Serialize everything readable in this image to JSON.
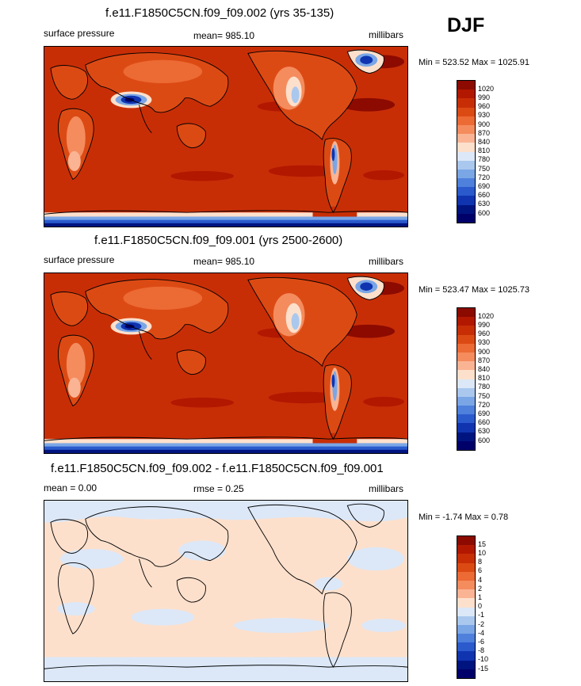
{
  "season": "DJF",
  "panels": [
    {
      "title": "f.e11.F1850C5CN.f09_f09.002 (yrs 35-135)",
      "left_label": "surface pressure",
      "center_label": "mean= 985.10",
      "right_label": "millibars",
      "minmax": "Min = 523.52 Max = 1025.91",
      "levels": [
        "1020",
        "990",
        "960",
        "930",
        "900",
        "870",
        "840",
        "810",
        "780",
        "750",
        "720",
        "690",
        "660",
        "630",
        "600"
      ],
      "colors": [
        "#8c0a00",
        "#b21800",
        "#c82e06",
        "#dc4a14",
        "#ec6a34",
        "#f48c5e",
        "#fab494",
        "#fde0cc",
        "#dce8f8",
        "#aac8ee",
        "#7aa6e6",
        "#4e80dc",
        "#2a5acc",
        "#1034b0",
        "#001480",
        "#00006a"
      ]
    },
    {
      "title": "f.e11.F1850C5CN.f09_f09.001 (yrs 2500-2600)",
      "left_label": "surface pressure",
      "center_label": "mean= 985.10",
      "right_label": "millibars",
      "minmax": "Min = 523.47 Max = 1025.73",
      "levels": [
        "1020",
        "990",
        "960",
        "930",
        "900",
        "870",
        "840",
        "810",
        "780",
        "750",
        "720",
        "690",
        "660",
        "630",
        "600"
      ],
      "colors": [
        "#8c0a00",
        "#b21800",
        "#c82e06",
        "#dc4a14",
        "#ec6a34",
        "#f48c5e",
        "#fab494",
        "#fde0cc",
        "#dce8f8",
        "#aac8ee",
        "#7aa6e6",
        "#4e80dc",
        "#2a5acc",
        "#1034b0",
        "#001480",
        "#00006a"
      ]
    },
    {
      "title": "f.e11.F1850C5CN.f09_f09.002 - f.e11.F1850C5CN.f09_f09.001",
      "left_label": "mean =   0.00",
      "center_label": "rmse =   0.25",
      "right_label": "millibars",
      "minmax": "Min =  -1.74 Max =   0.78",
      "levels": [
        "15",
        "10",
        "8",
        "6",
        "4",
        "2",
        "1",
        "0",
        "-1",
        "-2",
        "-4",
        "-6",
        "-8",
        "-10",
        "-15"
      ],
      "colors": [
        "#8c0a00",
        "#b21800",
        "#c82e06",
        "#dc4a14",
        "#ec6a34",
        "#f48c5e",
        "#fab494",
        "#fde0cc",
        "#dce8f8",
        "#aac8ee",
        "#7aa6e6",
        "#4e80dc",
        "#2a5acc",
        "#1034b0",
        "#001480",
        "#00006a"
      ]
    }
  ]
}
